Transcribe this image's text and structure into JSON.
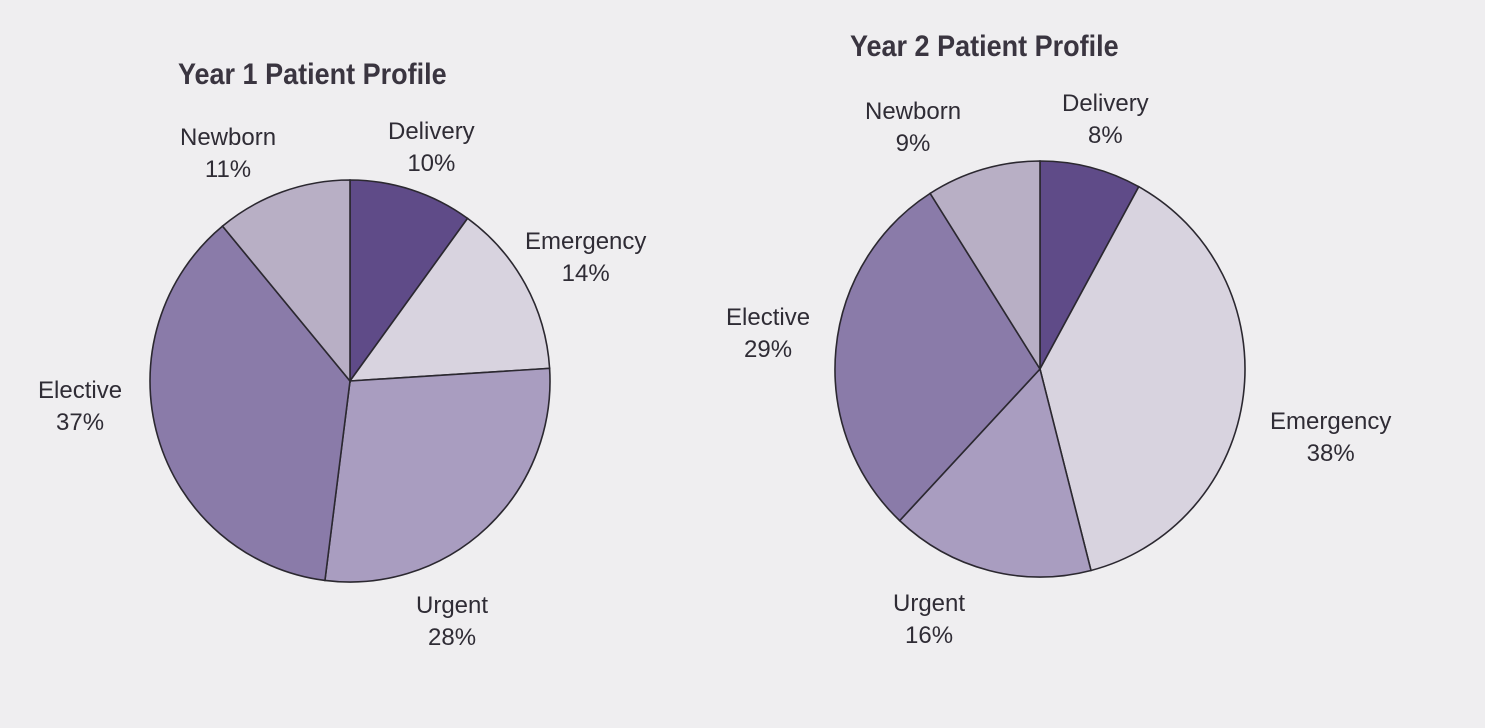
{
  "chart_data": [
    {
      "type": "pie",
      "title": "Year 1 Patient Profile",
      "categories": [
        "Delivery",
        "Emergency",
        "Urgent",
        "Elective",
        "Newborn"
      ],
      "values": [
        10,
        14,
        28,
        37,
        11
      ],
      "labels": [
        "10%",
        "14%",
        "28%",
        "37%",
        "11%"
      ],
      "colors": [
        "#5f4b88",
        "#d8d3df",
        "#a99dc0",
        "#8a7ba9",
        "#b8afc5"
      ]
    },
    {
      "type": "pie",
      "title": "Year 2 Patient Profile",
      "categories": [
        "Delivery",
        "Emergency",
        "Urgent",
        "Elective",
        "Newborn"
      ],
      "values": [
        8,
        38,
        16,
        29,
        9
      ],
      "labels": [
        "8%",
        "38%",
        "16%",
        "29%",
        "9%"
      ],
      "colors": [
        "#5f4b88",
        "#d8d3df",
        "#a99dc0",
        "#8a7ba9",
        "#b8afc5"
      ]
    }
  ]
}
